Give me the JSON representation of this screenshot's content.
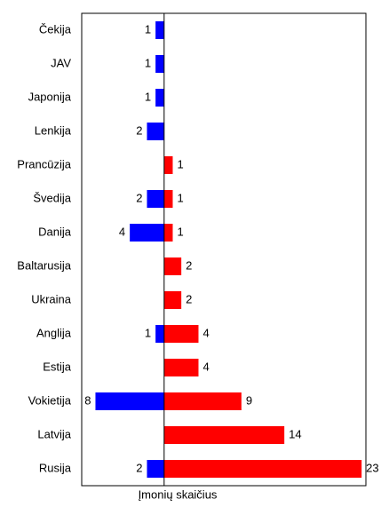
{
  "chart_data": {
    "type": "bar",
    "orientation": "horizontal",
    "xlabel": "Įmonių skaičius",
    "categories": [
      "Čekija",
      "JAV",
      "Japonija",
      "Lenkija",
      "Prancūzija",
      "Švedija",
      "Danija",
      "Baltarusija",
      "Ukraina",
      "Anglija",
      "Estija",
      "Vokietija",
      "Latvija",
      "Rusija"
    ],
    "series": [
      {
        "color": "#0000ff",
        "values": [
          -1,
          -1,
          -1,
          -2,
          null,
          -2,
          -4,
          null,
          null,
          -1,
          null,
          -8,
          null,
          -2
        ],
        "value_labels": [
          "1",
          "1",
          "1",
          "2",
          null,
          "2",
          "4",
          null,
          null,
          "1",
          null,
          "8",
          null,
          "2"
        ]
      },
      {
        "color": "#ff0000",
        "values": [
          null,
          null,
          null,
          null,
          1,
          1,
          1,
          2,
          2,
          4,
          4,
          9,
          14,
          23
        ]
      }
    ],
    "xlim": [
      -9.6,
      23.5
    ]
  }
}
